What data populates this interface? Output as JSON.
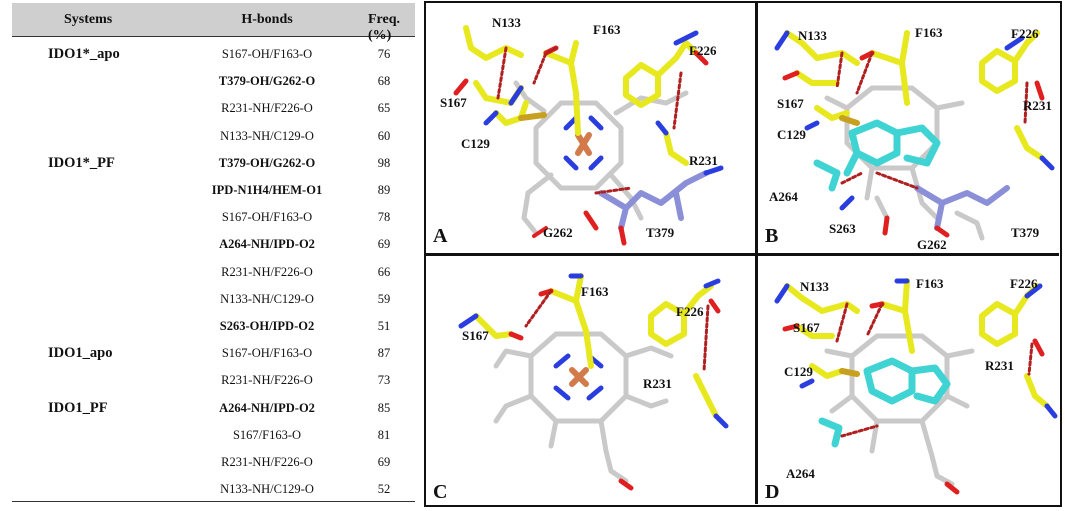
{
  "table": {
    "headers": {
      "systems": "Systems",
      "hbonds": "H-bonds",
      "freq": "Freq.(%)"
    },
    "rows": [
      {
        "system": "IDO1*_apo",
        "hbond": "S167-OH/F163-O",
        "freq": "76",
        "bold": false
      },
      {
        "system": "",
        "hbond": "T379-OH/G262-O",
        "freq": "68",
        "bold": true
      },
      {
        "system": "",
        "hbond": "R231-NH/F226-O",
        "freq": "65",
        "bold": false
      },
      {
        "system": "",
        "hbond": "N133-NH/C129-O",
        "freq": "60",
        "bold": false
      },
      {
        "system": "IDO1*_PF",
        "hbond": "T379-OH/G262-O",
        "freq": "98",
        "bold": true
      },
      {
        "system": "",
        "hbond": "IPD-N1H4/HEM-O1",
        "freq": "89",
        "bold": true
      },
      {
        "system": "",
        "hbond": "S167-OH/F163-O",
        "freq": "78",
        "bold": false
      },
      {
        "system": "",
        "hbond": "A264-NH/IPD-O2",
        "freq": "69",
        "bold": true
      },
      {
        "system": "",
        "hbond": "R231-NH/F226-O",
        "freq": "66",
        "bold": false
      },
      {
        "system": "",
        "hbond": "N133-NH/C129-O",
        "freq": "59",
        "bold": false
      },
      {
        "system": "",
        "hbond": "S263-OH/IPD-O2",
        "freq": "51",
        "bold": true
      },
      {
        "system": "IDO1_apo",
        "hbond": "S167-OH/F163-O",
        "freq": "87",
        "bold": false
      },
      {
        "system": "",
        "hbond": "R231-NH/F226-O",
        "freq": "73",
        "bold": false
      },
      {
        "system": "IDO1_PF",
        "hbond": "A264-NH/IPD-O2",
        "freq": "85",
        "bold": true
      },
      {
        "system": "",
        "hbond": "S167/F163-O",
        "freq": "81",
        "bold": false
      },
      {
        "system": "",
        "hbond": "R231-NH/F226-O",
        "freq": "69",
        "bold": false
      },
      {
        "system": "",
        "hbond": "N133-NH/C129-O",
        "freq": "52",
        "bold": false
      }
    ]
  },
  "figure": {
    "colors": {
      "carbon_protein": "#e8e81e",
      "carbon_heme": "#d2d2d2",
      "carbon_ligand": "#3fd3d3",
      "carbon_loop": "#8a8fd8",
      "nitrogen": "#2a3ee0",
      "oxygen": "#e02020",
      "iron": "#d27a4a",
      "sulfur": "#c8a020",
      "hbond": "#b02020"
    },
    "panels": [
      {
        "id": "A",
        "label": "A",
        "residues": [
          "N133",
          "F163",
          "F226",
          "S167",
          "C129",
          "R231",
          "G262",
          "T379"
        ]
      },
      {
        "id": "B",
        "label": "B",
        "residues": [
          "N133",
          "F163",
          "F226",
          "S167",
          "R231",
          "C129",
          "A264",
          "S263",
          "G262",
          "T379"
        ]
      },
      {
        "id": "C",
        "label": "C",
        "residues": [
          "F163",
          "F226",
          "S167",
          "R231"
        ]
      },
      {
        "id": "D",
        "label": "D",
        "residues": [
          "N133",
          "F163",
          "F226",
          "S167",
          "C129",
          "R231",
          "A264"
        ]
      }
    ]
  }
}
